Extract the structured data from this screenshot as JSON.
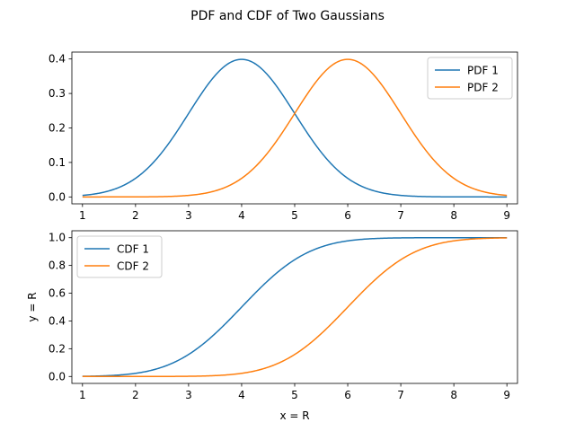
{
  "figure": {
    "suptitle": "PDF and CDF of Two Gaussians"
  },
  "chart_data": [
    {
      "type": "line",
      "title": "",
      "xlabel": "",
      "ylabel": "",
      "xlim": [
        0.8,
        9.2
      ],
      "ylim": [
        -0.02,
        0.42
      ],
      "xticks": [
        "1",
        "2",
        "3",
        "4",
        "5",
        "6",
        "7",
        "8",
        "9"
      ],
      "yticks": [
        "0.0",
        "0.1",
        "0.2",
        "0.3",
        "0.4"
      ],
      "grid": false,
      "legend_position": "upper right",
      "x": [
        1,
        1.5,
        2,
        2.5,
        3,
        3.5,
        4,
        4.5,
        5,
        5.5,
        6,
        6.5,
        7,
        7.5,
        8,
        8.5,
        9
      ],
      "series": [
        {
          "name": "PDF 1",
          "color": "#1f77b4",
          "values": [
            0.004,
            0.018,
            0.054,
            0.13,
            0.242,
            0.352,
            0.399,
            0.352,
            0.242,
            0.13,
            0.054,
            0.018,
            0.004,
            0.001,
            0.0,
            0.0,
            0.0
          ]
        },
        {
          "name": "PDF 2",
          "color": "#ff7f0e",
          "values": [
            0.0,
            0.0,
            0.0,
            0.001,
            0.004,
            0.018,
            0.054,
            0.13,
            0.242,
            0.352,
            0.399,
            0.352,
            0.242,
            0.13,
            0.054,
            0.018,
            0.004
          ]
        }
      ]
    },
    {
      "type": "line",
      "title": "",
      "xlabel": "x = R",
      "ylabel": "y = R",
      "xlim": [
        0.8,
        9.2
      ],
      "ylim": [
        -0.05,
        1.05
      ],
      "xticks": [
        "1",
        "2",
        "3",
        "4",
        "5",
        "6",
        "7",
        "8",
        "9"
      ],
      "yticks": [
        "0.0",
        "0.2",
        "0.4",
        "0.6",
        "0.8",
        "1.0"
      ],
      "grid": false,
      "legend_position": "upper left",
      "x": [
        1,
        1.5,
        2,
        2.5,
        3,
        3.5,
        4,
        4.5,
        5,
        5.5,
        6,
        6.5,
        7,
        7.5,
        8,
        8.5,
        9
      ],
      "series": [
        {
          "name": "CDF 1",
          "color": "#1f77b4",
          "values": [
            0.001,
            0.006,
            0.023,
            0.067,
            0.159,
            0.309,
            0.5,
            0.691,
            0.841,
            0.933,
            0.977,
            0.994,
            0.999,
            1.0,
            1.0,
            1.0,
            1.0
          ]
        },
        {
          "name": "CDF 2",
          "color": "#ff7f0e",
          "values": [
            0.0,
            0.0,
            0.0,
            0.0,
            0.001,
            0.006,
            0.023,
            0.067,
            0.159,
            0.309,
            0.5,
            0.691,
            0.841,
            0.933,
            0.977,
            0.994,
            0.999
          ]
        }
      ]
    }
  ]
}
